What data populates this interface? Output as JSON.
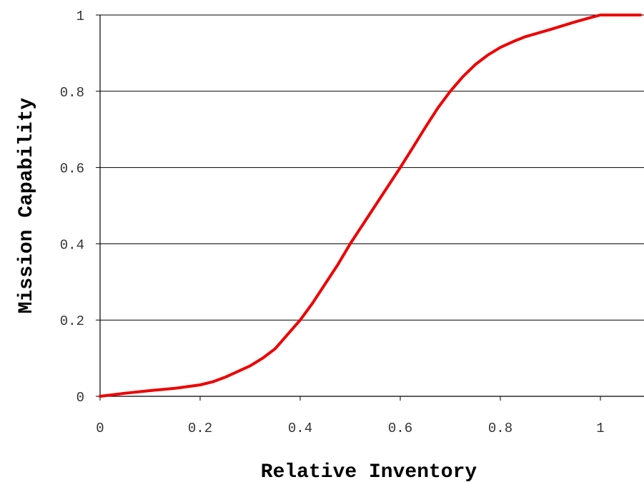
{
  "chart_data": {
    "type": "line",
    "title": "",
    "xlabel": "Relative Inventory",
    "ylabel": "Mission Capability",
    "xlim": [
      0,
      1.08
    ],
    "ylim": [
      0,
      1
    ],
    "x_ticks": [
      "0",
      "0.2",
      "0.4",
      "0.6",
      "0.8",
      "1"
    ],
    "y_ticks": [
      "0",
      "0.2",
      "0.4",
      "0.6",
      "0.8",
      "1"
    ],
    "x_tick_values": [
      0,
      0.2,
      0.4,
      0.6,
      0.8,
      1
    ],
    "y_tick_values": [
      0,
      0.2,
      0.4,
      0.6,
      0.8,
      1
    ],
    "grid": "horizontal",
    "series": [
      {
        "color": "#ee0000",
        "x": [
          0,
          0.05,
          0.1,
          0.15,
          0.2,
          0.225,
          0.25,
          0.275,
          0.3,
          0.325,
          0.35,
          0.4,
          0.425,
          0.45,
          0.475,
          0.5,
          0.55,
          0.6,
          0.625,
          0.65,
          0.675,
          0.7,
          0.725,
          0.75,
          0.775,
          0.8,
          0.825,
          0.85,
          0.9,
          0.95,
          0.98,
          1.0,
          1.08
        ],
        "y": [
          0,
          0.008,
          0.015,
          0.021,
          0.03,
          0.038,
          0.05,
          0.065,
          0.08,
          0.1,
          0.125,
          0.2,
          0.245,
          0.295,
          0.345,
          0.4,
          0.5,
          0.6,
          0.652,
          0.705,
          0.756,
          0.8,
          0.838,
          0.87,
          0.895,
          0.915,
          0.93,
          0.943,
          0.962,
          0.982,
          0.993,
          1.0,
          1.0
        ]
      }
    ]
  }
}
